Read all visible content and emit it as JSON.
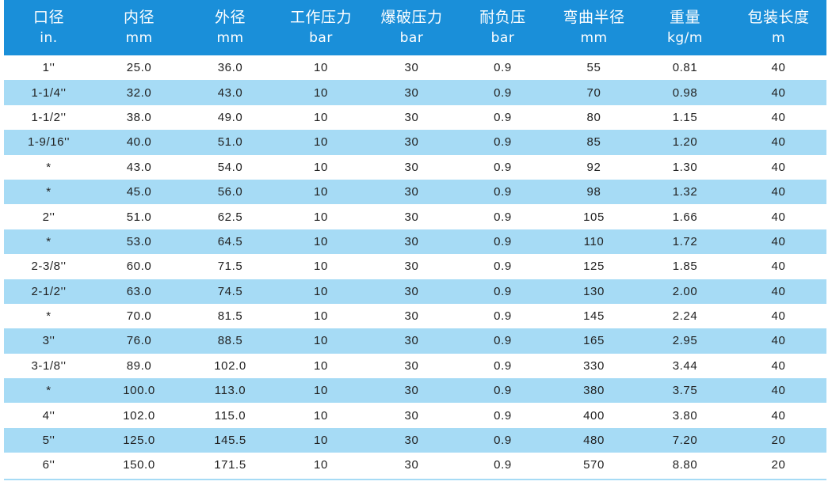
{
  "table": {
    "headers": [
      {
        "cn": "口径",
        "unit": "in."
      },
      {
        "cn": "内径",
        "unit": "mm"
      },
      {
        "cn": "外径",
        "unit": "mm"
      },
      {
        "cn": "工作压力",
        "unit": "bar"
      },
      {
        "cn": "爆破压力",
        "unit": "bar"
      },
      {
        "cn": "耐负压",
        "unit": "bar"
      },
      {
        "cn": "弯曲半径",
        "unit": "mm"
      },
      {
        "cn": "重量",
        "unit": "kg/m"
      },
      {
        "cn": "包装长度",
        "unit": "m"
      }
    ],
    "rows": [
      [
        "1''",
        "25.0",
        "36.0",
        "10",
        "30",
        "0.9",
        "55",
        "0.81",
        "40"
      ],
      [
        "1-1/4''",
        "32.0",
        "43.0",
        "10",
        "30",
        "0.9",
        "70",
        "0.98",
        "40"
      ],
      [
        "1-1/2''",
        "38.0",
        "49.0",
        "10",
        "30",
        "0.9",
        "80",
        "1.15",
        "40"
      ],
      [
        "1-9/16''",
        "40.0",
        "51.0",
        "10",
        "30",
        "0.9",
        "85",
        "1.20",
        "40"
      ],
      [
        "*",
        "43.0",
        "54.0",
        "10",
        "30",
        "0.9",
        "92",
        "1.30",
        "40"
      ],
      [
        "*",
        "45.0",
        "56.0",
        "10",
        "30",
        "0.9",
        "98",
        "1.32",
        "40"
      ],
      [
        "2''",
        "51.0",
        "62.5",
        "10",
        "30",
        "0.9",
        "105",
        "1.66",
        "40"
      ],
      [
        "*",
        "53.0",
        "64.5",
        "10",
        "30",
        "0.9",
        "110",
        "1.72",
        "40"
      ],
      [
        "2-3/8''",
        "60.0",
        "71.5",
        "10",
        "30",
        "0.9",
        "125",
        "1.85",
        "40"
      ],
      [
        "2-1/2''",
        "63.0",
        "74.5",
        "10",
        "30",
        "0.9",
        "130",
        "2.00",
        "40"
      ],
      [
        "*",
        "70.0",
        "81.5",
        "10",
        "30",
        "0.9",
        "145",
        "2.24",
        "40"
      ],
      [
        "3''",
        "76.0",
        "88.5",
        "10",
        "30",
        "0.9",
        "165",
        "2.95",
        "40"
      ],
      [
        "3-1/8''",
        "89.0",
        "102.0",
        "10",
        "30",
        "0.9",
        "330",
        "3.44",
        "40"
      ],
      [
        "*",
        "100.0",
        "113.0",
        "10",
        "30",
        "0.9",
        "380",
        "3.75",
        "40"
      ],
      [
        "4''",
        "102.0",
        "115.0",
        "10",
        "30",
        "0.9",
        "400",
        "3.80",
        "40"
      ],
      [
        "5''",
        "125.0",
        "145.5",
        "10",
        "30",
        "0.9",
        "480",
        "7.20",
        "20"
      ],
      [
        "6''",
        "150.0",
        "171.5",
        "10",
        "30",
        "0.9",
        "570",
        "8.80",
        "20"
      ]
    ]
  },
  "colors": {
    "header_bg": "#1a8fd9",
    "stripe_bg": "#a6dbf5",
    "header_text": "#ffffff",
    "body_text": "#222222"
  }
}
